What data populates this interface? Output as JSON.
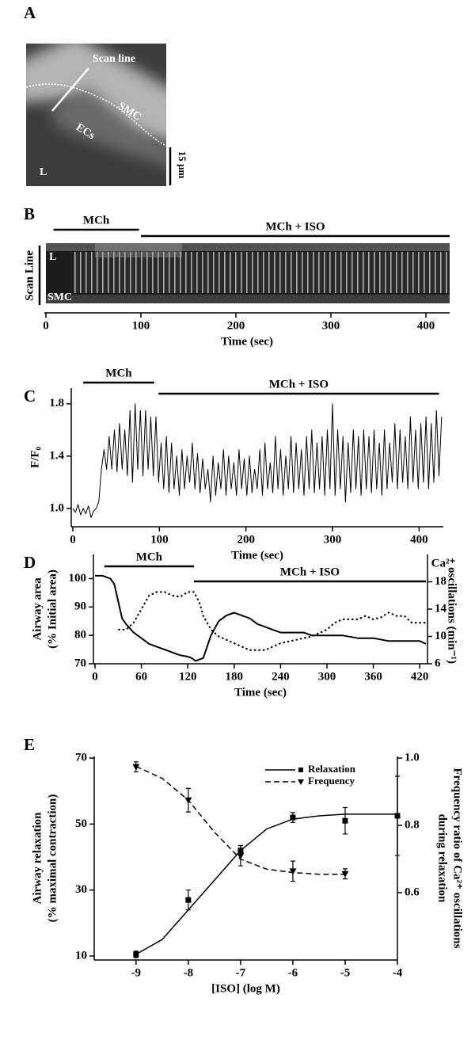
{
  "chart_data": [
    {
      "type": "image",
      "panel": "A",
      "labels": [
        "Scan line",
        "SMC",
        "ECs",
        "L"
      ],
      "scale_bar": "15 µm"
    },
    {
      "type": "kymograph",
      "panel": "B",
      "y_label": "Scan Line",
      "row_labels": [
        "L",
        "SMC"
      ],
      "x_label": "Time (sec)",
      "xlim": [
        0,
        425
      ],
      "xticks": [
        0,
        100,
        200,
        300,
        400
      ],
      "periods": [
        {
          "label": "MCh",
          "start": 8,
          "end": 98
        },
        {
          "label": "MCh  + ISO",
          "start": 100,
          "end": 425
        }
      ]
    },
    {
      "type": "line",
      "panel": "C",
      "y_label": "F/F₀",
      "x_label": "Time (sec)",
      "periods": [
        {
          "label": "MCh",
          "start": 12,
          "end": 94
        },
        {
          "label": "MCh + ISO",
          "start": 99,
          "end": 423
        }
      ],
      "xlim": [
        0,
        428
      ],
      "ylim": [
        0.86,
        1.92
      ],
      "xticks": [
        0,
        100,
        200,
        300,
        400
      ],
      "yticks": [
        {
          "value": 1,
          "label": "1.0"
        },
        1.4,
        1.8
      ],
      "color": "#000000",
      "x": [
        0,
        3,
        6,
        9,
        12,
        15,
        18,
        21,
        24,
        27,
        30,
        33,
        36,
        39,
        42,
        45,
        48,
        51,
        54,
        57,
        60,
        63,
        66,
        69,
        72,
        75,
        78,
        81,
        84,
        87,
        90,
        93,
        96,
        99,
        102,
        105,
        108,
        111,
        114,
        117,
        120,
        123,
        126,
        129,
        132,
        135,
        138,
        141,
        144,
        147,
        150,
        153,
        156,
        159,
        162,
        165,
        168,
        171,
        174,
        177,
        180,
        183,
        186,
        189,
        192,
        195,
        198,
        201,
        204,
        207,
        210,
        213,
        216,
        219,
        222,
        225,
        228,
        231,
        234,
        237,
        240,
        243,
        246,
        249,
        252,
        255,
        258,
        261,
        264,
        267,
        270,
        273,
        276,
        279,
        282,
        285,
        288,
        291,
        294,
        297,
        300,
        303,
        306,
        309,
        312,
        315,
        318,
        321,
        324,
        327,
        330,
        333,
        336,
        339,
        342,
        345,
        348,
        351,
        354,
        357,
        360,
        363,
        366,
        369,
        372,
        375,
        378,
        381,
        384,
        387,
        390,
        393,
        396,
        399,
        402,
        405,
        408,
        411,
        414,
        417,
        420,
        423,
        426
      ],
      "values": [
        1.0,
        0.97,
        1.03,
        0.95,
        1.0,
        0.96,
        1.02,
        0.93,
        0.98,
        1.0,
        1.05,
        1.3,
        1.45,
        1.3,
        1.55,
        1.3,
        1.6,
        1.28,
        1.65,
        1.3,
        1.6,
        1.25,
        1.75,
        1.2,
        1.8,
        1.3,
        1.75,
        1.25,
        1.75,
        1.3,
        1.7,
        1.25,
        1.7,
        1.2,
        1.5,
        1.15,
        1.55,
        1.12,
        1.5,
        1.15,
        1.4,
        1.1,
        1.45,
        1.15,
        1.4,
        1.2,
        1.5,
        1.15,
        1.42,
        1.12,
        1.38,
        1.15,
        1.3,
        1.05,
        1.4,
        1.1,
        1.35,
        1.15,
        1.45,
        1.1,
        1.4,
        1.15,
        1.35,
        1.1,
        1.45,
        1.15,
        1.38,
        1.1,
        1.4,
        1.12,
        1.3,
        1.15,
        1.45,
        1.1,
        1.5,
        1.15,
        1.35,
        1.12,
        1.55,
        1.15,
        1.45,
        1.1,
        1.4,
        1.15,
        1.55,
        1.12,
        1.5,
        1.15,
        1.45,
        1.1,
        1.55,
        1.15,
        1.6,
        1.12,
        1.5,
        1.15,
        1.55,
        1.1,
        1.6,
        1.15,
        1.8,
        1.1,
        1.6,
        1.15,
        1.55,
        1.05,
        1.5,
        1.12,
        1.6,
        1.15,
        1.55,
        1.1,
        1.6,
        1.15,
        1.55,
        1.12,
        1.6,
        1.15,
        1.5,
        1.1,
        1.6,
        1.15,
        1.5,
        1.2,
        1.65,
        1.15,
        1.6,
        1.2,
        1.55,
        1.15,
        1.7,
        1.2,
        1.6,
        1.15,
        1.65,
        1.2,
        1.7,
        1.15,
        1.65,
        1.2,
        1.75,
        1.25,
        1.7
      ]
    },
    {
      "type": "line",
      "panel": "D",
      "y_label": [
        "Airway area",
        "(% Initial area)"
      ],
      "y2_label": [
        "Ca²⁺",
        "oscillations (min⁻¹)"
      ],
      "x_label": "Time (sec)",
      "periods": [
        {
          "label": "MCh",
          "start": 12,
          "end": 128
        },
        {
          "label": "MCh + ISO",
          "start": 128,
          "end": 428
        }
      ],
      "xlim": [
        0,
        428
      ],
      "ylim": [
        70,
        108.5
      ],
      "y2lim": [
        6,
        22
      ],
      "xticks": [
        0,
        60,
        120,
        180,
        240,
        300,
        360,
        420
      ],
      "yticks": [
        70,
        80,
        90,
        100
      ],
      "y2ticks": [
        6,
        10,
        14,
        18
      ],
      "series": [
        {
          "color": "#000000",
          "line_style": "solid",
          "x": [
            0,
            10,
            20,
            25,
            30,
            35,
            40,
            50,
            60,
            70,
            80,
            90,
            100,
            110,
            120,
            125,
            130,
            140,
            145,
            150,
            160,
            170,
            180,
            190,
            200,
            210,
            220,
            230,
            240,
            250,
            260,
            270,
            280,
            300,
            320,
            340,
            360,
            380,
            400,
            420,
            428
          ],
          "values": [
            101,
            101,
            100,
            98,
            92,
            86,
            84,
            81,
            79,
            77,
            76,
            75,
            74,
            73,
            72.5,
            72,
            71,
            72,
            76,
            80,
            85,
            87,
            88,
            87,
            86,
            84,
            83,
            82,
            81,
            81,
            81,
            81,
            80,
            80,
            80,
            79,
            79,
            78,
            78,
            78,
            77
          ]
        },
        {
          "color": "#000000",
          "line_style": "dotted",
          "axis": "y2",
          "x": [
            30,
            40,
            50,
            60,
            70,
            80,
            90,
            100,
            110,
            120,
            128,
            135,
            140,
            150,
            160,
            170,
            180,
            190,
            200,
            220,
            230,
            240,
            260,
            280,
            300,
            310,
            320,
            340,
            350,
            360,
            370,
            380,
            390,
            400,
            410,
            420,
            428
          ],
          "values": [
            11,
            11,
            12,
            14,
            16,
            16.5,
            16.5,
            16,
            15.8,
            16.5,
            16.5,
            15,
            13,
            11,
            10,
            9.5,
            9,
            8.5,
            8,
            8,
            8.5,
            9,
            9.5,
            10,
            11,
            12,
            12.5,
            12.5,
            13,
            12.5,
            12.8,
            13.5,
            13,
            13,
            12,
            12,
            12
          ]
        }
      ]
    },
    {
      "type": "scatter",
      "panel": "E",
      "x_label": "[ISO] (log M)",
      "y_label": [
        "Airway relaxation",
        "(% maximal contraction)"
      ],
      "y2_label": [
        "Frequency ratio of Ca²⁺ oscillations",
        "during relaxation"
      ],
      "xlim": [
        -9.8,
        -4
      ],
      "ylim": [
        8.8,
        70.5
      ],
      "y2lim": [
        0.4,
        1.005
      ],
      "xticks": [
        -9,
        -8,
        -7,
        -6,
        -5,
        -4
      ],
      "yticks": [
        10,
        30,
        50,
        70
      ],
      "y2ticks": [
        0.6,
        0.8,
        {
          "value": 1,
          "label": "1.0"
        }
      ],
      "legend": "upper right",
      "series": [
        {
          "name": "Relaxation",
          "color": "#000000",
          "marker": "square",
          "line_style": "solid",
          "x": [
            -9,
            -8,
            -7,
            -6,
            -5,
            -4
          ],
          "values": [
            10.5,
            27,
            42,
            52,
            51,
            52.5
          ],
          "errors": [
            1,
            3,
            1.5,
            1.5,
            4,
            12
          ],
          "curve_x": [
            -9,
            -8.5,
            -8,
            -7.5,
            -7,
            -6.5,
            -6,
            -5.5,
            -5,
            -4.5,
            -4
          ],
          "curve_values": [
            10.5,
            15,
            24,
            33,
            42,
            48.5,
            51.5,
            52.5,
            53,
            53,
            53
          ]
        },
        {
          "name": "Frequency",
          "color": "#000000",
          "marker": "triangle-down",
          "line_style": "dashed",
          "axis": "y2",
          "x": [
            -9,
            -8,
            -7,
            -6,
            -5
          ],
          "values": [
            0.974,
            0.875,
            0.71,
            0.664,
            0.656
          ],
          "errors": [
            0.015,
            0.035,
            0.03,
            0.03,
            0.015
          ],
          "curve_x": [
            -9,
            -8.5,
            -8,
            -7.5,
            -7,
            -6.5,
            -6,
            -5.5,
            -5
          ],
          "curve_values": [
            0.975,
            0.94,
            0.875,
            0.78,
            0.7,
            0.67,
            0.66,
            0.655,
            0.655
          ]
        }
      ]
    }
  ]
}
